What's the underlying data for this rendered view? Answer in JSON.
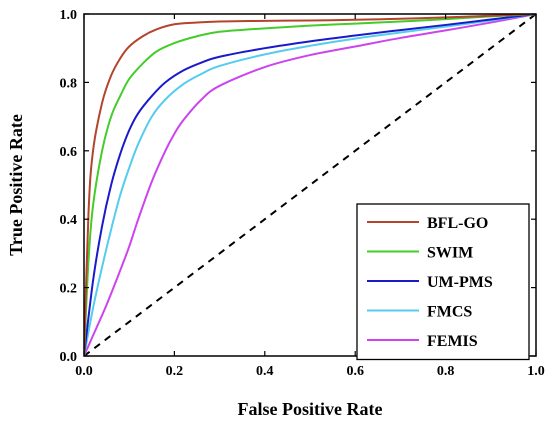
{
  "chart_data": {
    "type": "line",
    "title": "",
    "xlabel": "False Positive Rate",
    "ylabel": "True Positive Rate",
    "xlim": [
      0,
      1
    ],
    "ylim": [
      0,
      1
    ],
    "x_ticks": [
      "0.0",
      "0.2",
      "0.4",
      "0.6",
      "0.8",
      "1.0"
    ],
    "y_ticks": [
      "0.0",
      "0.2",
      "0.4",
      "0.6",
      "0.8",
      "1.0"
    ],
    "grid": false,
    "legend_position": "bottom-right",
    "series": [
      {
        "name": "BFL-GO",
        "color": "#b5442d",
        "x": [
          0,
          0.01,
          0.02,
          0.04,
          0.06,
          0.08,
          0.1,
          0.13,
          0.16,
          0.2,
          0.25,
          0.3,
          0.4,
          0.5,
          0.6,
          0.7,
          0.8,
          0.9,
          1.0
        ],
        "y": [
          0,
          0.42,
          0.6,
          0.74,
          0.82,
          0.87,
          0.905,
          0.935,
          0.955,
          0.97,
          0.975,
          0.978,
          0.98,
          0.981,
          0.983,
          0.986,
          0.99,
          0.995,
          1.0
        ]
      },
      {
        "name": "SWIM",
        "color": "#44cc2a",
        "x": [
          0,
          0.01,
          0.02,
          0.04,
          0.06,
          0.08,
          0.1,
          0.13,
          0.16,
          0.2,
          0.25,
          0.3,
          0.4,
          0.5,
          0.6,
          0.7,
          0.8,
          0.9,
          1.0
        ],
        "y": [
          0,
          0.28,
          0.44,
          0.6,
          0.7,
          0.76,
          0.81,
          0.855,
          0.89,
          0.915,
          0.935,
          0.948,
          0.958,
          0.966,
          0.972,
          0.978,
          0.985,
          0.993,
          1.0
        ]
      },
      {
        "name": "UM-PMS",
        "color": "#1a1acc",
        "x": [
          0,
          0.02,
          0.04,
          0.06,
          0.08,
          0.1,
          0.12,
          0.15,
          0.18,
          0.22,
          0.26,
          0.3,
          0.4,
          0.5,
          0.6,
          0.7,
          0.8,
          0.9,
          1.0
        ],
        "y": [
          0,
          0.22,
          0.38,
          0.5,
          0.59,
          0.66,
          0.71,
          0.76,
          0.8,
          0.835,
          0.858,
          0.875,
          0.9,
          0.92,
          0.937,
          0.953,
          0.968,
          0.984,
          1.0
        ]
      },
      {
        "name": "FMCS",
        "color": "#55ccee",
        "x": [
          0,
          0.02,
          0.04,
          0.06,
          0.08,
          0.1,
          0.12,
          0.15,
          0.18,
          0.22,
          0.26,
          0.3,
          0.4,
          0.5,
          0.6,
          0.7,
          0.8,
          0.9,
          1.0
        ],
        "y": [
          0,
          0.14,
          0.26,
          0.37,
          0.47,
          0.55,
          0.62,
          0.7,
          0.75,
          0.795,
          0.825,
          0.848,
          0.882,
          0.907,
          0.928,
          0.946,
          0.963,
          0.981,
          1.0
        ]
      },
      {
        "name": "FEMIS",
        "color": "#cc44ee",
        "x": [
          0,
          0.02,
          0.05,
          0.08,
          0.1,
          0.12,
          0.15,
          0.18,
          0.2,
          0.22,
          0.26,
          0.3,
          0.4,
          0.5,
          0.6,
          0.7,
          0.8,
          0.9,
          1.0
        ],
        "y": [
          0,
          0.06,
          0.15,
          0.25,
          0.32,
          0.4,
          0.51,
          0.6,
          0.65,
          0.69,
          0.75,
          0.79,
          0.845,
          0.88,
          0.905,
          0.93,
          0.952,
          0.975,
          1.0
        ]
      }
    ],
    "reference_line": {
      "x": [
        0,
        1
      ],
      "y": [
        0,
        1
      ],
      "style": "dashed",
      "color": "#000000"
    }
  }
}
